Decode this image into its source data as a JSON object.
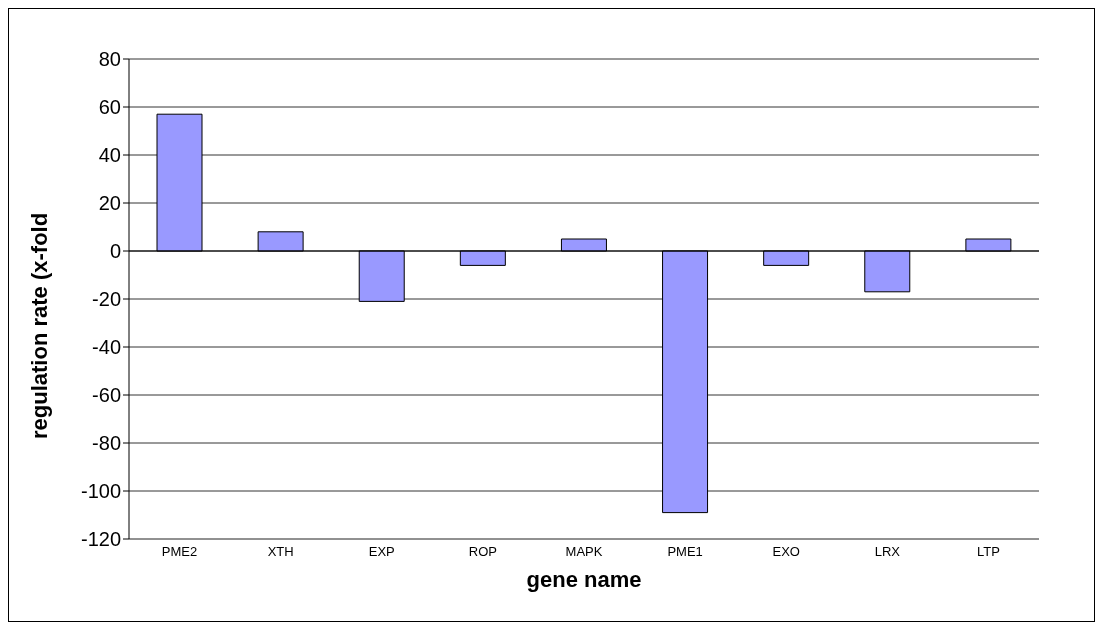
{
  "chart_data": {
    "type": "bar",
    "xlabel": "gene name",
    "ylabel": "regulation rate (x-fold",
    "categories": [
      "PME2",
      "XTH",
      "EXP",
      "ROP",
      "MAPK",
      "PME1",
      "EXO",
      "LRX",
      "LTP"
    ],
    "values": [
      57,
      8,
      -21,
      -6,
      5,
      -109,
      -6,
      -17,
      5
    ],
    "color": "#9999ff",
    "ylim": [
      -120,
      80
    ],
    "yticks": [
      -120,
      -100,
      -80,
      -60,
      -40,
      -20,
      0,
      20,
      40,
      60,
      80
    ],
    "grid": "y"
  }
}
